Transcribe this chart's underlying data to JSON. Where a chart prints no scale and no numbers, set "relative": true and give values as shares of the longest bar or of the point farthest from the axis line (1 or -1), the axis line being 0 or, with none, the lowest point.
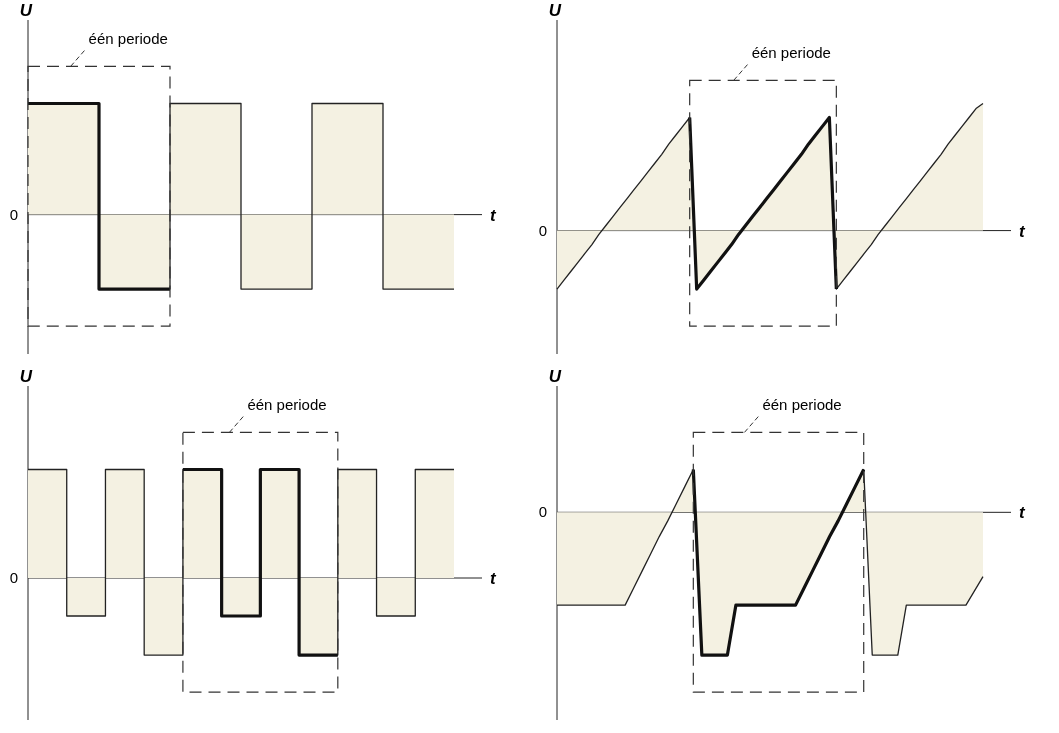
{
  "chart_data": [
    {
      "type": "step",
      "relative": true,
      "xlabel": "t",
      "ylabel": "U",
      "tick_labels": false,
      "annotations": [
        "één periode",
        "0"
      ],
      "categories": [
        null,
        null,
        null,
        null,
        null,
        null,
        null
      ],
      "series": [
        {
          "color": "#222222",
          "values": [
            1,
            -0.67,
            1,
            -0.67,
            1,
            -0.67,
            -0.67
          ]
        },
        {
          "color": "#111111",
          "values": [
            1,
            -0.67,
            -0.67,
            null,
            null,
            null,
            null
          ]
        }
      ]
    },
    {
      "type": "line",
      "relative": true,
      "xlabel": "t",
      "ylabel": "U",
      "tick_labels": false,
      "annotations": [
        "één periode",
        "0"
      ],
      "categories": [
        null,
        null,
        null,
        null,
        null,
        null,
        null,
        null,
        null,
        null,
        null,
        null,
        null,
        null,
        null,
        null,
        null,
        null,
        null,
        null,
        null,
        null,
        null,
        null,
        null,
        null,
        null,
        null,
        null,
        null,
        null,
        null,
        null,
        null,
        null,
        null,
        null,
        null,
        null,
        null,
        null,
        null,
        null,
        null,
        null,
        null,
        null,
        null,
        null,
        null,
        null,
        null,
        null,
        null,
        null,
        null,
        null,
        null,
        null,
        null,
        null,
        null
      ],
      "series": [
        {
          "color": "#222222",
          "values": [
            -0.46,
            -0.39,
            -0.32,
            -0.25,
            -0.18,
            -0.11,
            -0.03,
            0.04,
            0.11,
            0.18,
            0.25,
            0.32,
            0.39,
            0.46,
            0.53,
            0.6,
            0.68,
            0.75,
            0.82,
            0.89,
            -0.46,
            -0.39,
            -0.32,
            -0.25,
            -0.18,
            -0.11,
            -0.03,
            0.04,
            0.11,
            0.18,
            0.25,
            0.32,
            0.39,
            0.46,
            0.53,
            0.6,
            0.68,
            0.75,
            0.82,
            0.89,
            -0.46,
            -0.39,
            -0.32,
            -0.25,
            -0.18,
            -0.11,
            -0.03,
            0.04,
            0.11,
            0.18,
            0.25,
            0.32,
            0.39,
            0.46,
            0.53,
            0.6,
            0.68,
            0.75,
            0.82,
            0.89,
            0.96,
            1
          ]
        },
        {
          "color": "#111111",
          "values": [
            null,
            null,
            null,
            null,
            null,
            null,
            null,
            null,
            null,
            null,
            null,
            null,
            null,
            null,
            null,
            null,
            null,
            null,
            null,
            0.89,
            -0.46,
            -0.39,
            -0.32,
            -0.25,
            -0.18,
            -0.11,
            -0.03,
            0.04,
            0.11,
            0.18,
            0.25,
            0.32,
            0.39,
            0.46,
            0.53,
            0.6,
            0.68,
            0.75,
            0.82,
            0.89,
            -0.46,
            null,
            null,
            null,
            null,
            null,
            null,
            null,
            null,
            null,
            null,
            null,
            null,
            null,
            null,
            null,
            null,
            null,
            null,
            null,
            null,
            null
          ]
        }
      ]
    },
    {
      "type": "step",
      "relative": true,
      "xlabel": "t",
      "ylabel": "U",
      "tick_labels": false,
      "annotations": [
        "één periode",
        "0"
      ],
      "categories": [
        null,
        null,
        null,
        null,
        null,
        null,
        null,
        null,
        null,
        null,
        null,
        null
      ],
      "series": [
        {
          "color": "#222222",
          "values": [
            1,
            -0.35,
            1,
            -0.71,
            1,
            -0.35,
            1,
            -0.71,
            1,
            -0.35,
            1,
            1
          ]
        },
        {
          "color": "#111111",
          "values": [
            null,
            null,
            null,
            null,
            1,
            -0.35,
            1,
            -0.71,
            -0.71,
            null,
            null,
            null
          ]
        }
      ]
    },
    {
      "type": "line",
      "relative": true,
      "xlabel": "t",
      "ylabel": "U",
      "tick_labels": false,
      "annotations": [
        "één periode",
        "0"
      ],
      "categories": [
        null,
        null,
        null,
        null,
        null,
        null,
        null,
        null,
        null,
        null,
        null,
        null,
        null,
        null,
        null,
        null,
        null,
        null,
        null,
        null,
        null,
        null,
        null,
        null,
        null,
        null,
        null,
        null,
        null,
        null,
        null,
        null,
        null,
        null,
        null,
        null,
        null,
        null,
        null,
        null,
        null,
        null,
        null,
        null,
        null,
        null,
        null,
        null,
        null,
        null,
        null
      ],
      "series": [
        {
          "color": "#222222",
          "values": [
            -0.65,
            -0.65,
            -0.65,
            -0.65,
            -0.65,
            -0.65,
            -0.65,
            -0.65,
            -0.65,
            -0.53,
            -0.41,
            -0.29,
            -0.17,
            -0.06,
            0.06,
            0.18,
            0.3,
            -1,
            -1,
            -1,
            -1,
            -0.65,
            -0.65,
            -0.65,
            -0.65,
            -0.65,
            -0.65,
            -0.65,
            -0.65,
            -0.53,
            -0.41,
            -0.29,
            -0.17,
            -0.06,
            0.06,
            0.18,
            0.3,
            -1,
            -1,
            -1,
            -1,
            -0.65,
            -0.65,
            -0.65,
            -0.65,
            -0.65,
            -0.65,
            -0.65,
            -0.65,
            -0.55,
            -0.45
          ]
        },
        {
          "color": "#111111",
          "values": [
            null,
            null,
            null,
            null,
            null,
            null,
            null,
            null,
            null,
            null,
            null,
            null,
            null,
            null,
            null,
            null,
            0.3,
            -1,
            -1,
            -1,
            -1,
            -0.65,
            -0.65,
            -0.65,
            -0.65,
            -0.65,
            -0.65,
            -0.65,
            -0.65,
            -0.53,
            -0.41,
            -0.29,
            -0.17,
            -0.06,
            0.06,
            0.18,
            0.3,
            null,
            null,
            null,
            null,
            null,
            null,
            null,
            null,
            null,
            null,
            null,
            null,
            null,
            null
          ]
        }
      ]
    }
  ]
}
